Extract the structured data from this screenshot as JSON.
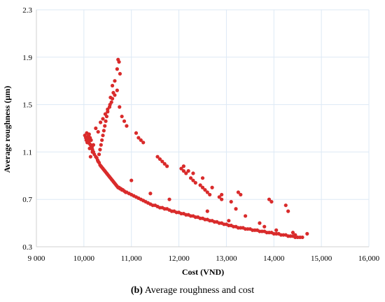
{
  "caption": {
    "label": "(b)",
    "text": " Average roughness and cost"
  },
  "chart_data": {
    "type": "scatter",
    "title": "",
    "xlabel": "Cost (VND)",
    "ylabel": "Average roughness (µm)",
    "xlim": [
      9000,
      16000
    ],
    "ylim": [
      0.3,
      2.3
    ],
    "x_ticks": [
      9000,
      10000,
      11000,
      12000,
      13000,
      14000,
      15000,
      16000
    ],
    "x_tick_labels": [
      "9 000",
      "10,000",
      "11,000",
      "12,000",
      "13,000",
      "14,000",
      "15,000",
      "16,000"
    ],
    "y_ticks": [
      0.3,
      0.7,
      1.1,
      1.5,
      1.9,
      2.3
    ],
    "y_tick_labels": [
      "0.3",
      "0.7",
      "1.1",
      "1.5",
      "1.9",
      "2.3"
    ],
    "grid": true,
    "marker_color": "#d92b2b",
    "series": [
      {
        "x": [
          10020,
          10040,
          10050,
          10060,
          10070,
          10080,
          10090,
          10100,
          10110,
          10120,
          10130,
          10140,
          10150,
          10160,
          10170,
          10180,
          10200,
          10220,
          10250,
          10270,
          10290,
          10300,
          10320,
          10340,
          10360,
          10380,
          10400,
          10420,
          10440,
          10460,
          10480,
          10500,
          10520,
          10540,
          10560,
          10580,
          10600,
          10620,
          10640,
          10660,
          10680,
          10700,
          10720,
          10740,
          10760,
          10780,
          10800,
          10820,
          10850,
          10880,
          10900,
          10950,
          11000,
          11050,
          11100,
          11150,
          11200,
          11250,
          11300,
          11350,
          11400,
          11450,
          11500,
          11550,
          11600,
          11650,
          11700,
          11750,
          11800,
          11850,
          11900,
          11950,
          12000,
          12050,
          12100,
          12150,
          12200,
          12250,
          12300,
          12350,
          12400,
          12450,
          12500,
          12550,
          12600,
          12650,
          12700,
          12750,
          12800,
          12850,
          12900,
          12950,
          13000,
          13050,
          13100,
          13150,
          13200,
          13250,
          13300,
          13350,
          13400,
          13450,
          13500,
          13550,
          13600,
          13650,
          13700,
          13750,
          13800,
          13850,
          13900,
          13950,
          14000,
          14050,
          14100,
          14150,
          14200,
          14250,
          14300,
          14350,
          14400,
          14450,
          14500,
          14550,
          14600,
          14700,
          10250,
          10300,
          10350,
          10400,
          10450,
          10500,
          10550,
          10600,
          10650,
          10700,
          10750,
          10800,
          10850,
          10900,
          11100,
          11150,
          11200,
          11250,
          11550,
          11600,
          11650,
          11700,
          11750,
          12050,
          12100,
          12150,
          12250,
          12300,
          12350,
          12450,
          12500,
          12550,
          12600,
          12650,
          12850,
          12900,
          13250,
          13300,
          13900,
          13950,
          14250,
          14300,
          10650,
          10700,
          10720,
          10740,
          10760,
          10600,
          10620,
          10560,
          10580,
          10540,
          10500,
          10480,
          10460,
          10440,
          10420,
          10400,
          10380,
          10360,
          10340,
          10320,
          10100,
          10150,
          10200,
          10120,
          10180,
          10140,
          12100,
          12200,
          12300,
          12500,
          12700,
          12900,
          13100,
          13200,
          13400,
          13700,
          13800,
          14050,
          14400,
          14450,
          11000,
          11400,
          11800,
          12600,
          13050
        ],
        "y": [
          1.24,
          1.22,
          1.2,
          1.26,
          1.18,
          1.21,
          1.23,
          1.19,
          1.25,
          1.17,
          1.22,
          1.16,
          1.2,
          1.15,
          1.14,
          1.12,
          1.1,
          1.08,
          1.06,
          1.05,
          1.03,
          1.02,
          1.01,
          0.99,
          0.98,
          0.97,
          0.96,
          0.95,
          0.94,
          0.93,
          0.92,
          0.91,
          0.9,
          0.89,
          0.88,
          0.87,
          0.86,
          0.85,
          0.84,
          0.83,
          0.82,
          0.81,
          0.8,
          0.8,
          0.79,
          0.79,
          0.78,
          0.78,
          0.77,
          0.76,
          0.76,
          0.75,
          0.74,
          0.73,
          0.72,
          0.71,
          0.7,
          0.69,
          0.68,
          0.67,
          0.66,
          0.65,
          0.65,
          0.64,
          0.63,
          0.63,
          0.62,
          0.62,
          0.61,
          0.6,
          0.6,
          0.59,
          0.59,
          0.58,
          0.58,
          0.57,
          0.57,
          0.56,
          0.56,
          0.55,
          0.55,
          0.54,
          0.54,
          0.53,
          0.53,
          0.52,
          0.52,
          0.51,
          0.51,
          0.5,
          0.5,
          0.49,
          0.49,
          0.48,
          0.48,
          0.47,
          0.47,
          0.46,
          0.46,
          0.46,
          0.45,
          0.45,
          0.45,
          0.44,
          0.44,
          0.44,
          0.43,
          0.43,
          0.43,
          0.42,
          0.42,
          0.42,
          0.41,
          0.41,
          0.41,
          0.4,
          0.4,
          0.4,
          0.39,
          0.39,
          0.39,
          0.38,
          0.38,
          0.38,
          0.38,
          0.41,
          1.3,
          1.27,
          1.35,
          1.38,
          1.42,
          1.46,
          1.5,
          1.55,
          1.58,
          1.62,
          1.48,
          1.4,
          1.36,
          1.32,
          1.26,
          1.22,
          1.2,
          1.18,
          1.06,
          1.04,
          1.02,
          1.0,
          0.98,
          0.96,
          0.94,
          0.92,
          0.88,
          0.86,
          0.84,
          0.82,
          0.8,
          0.78,
          0.76,
          0.74,
          0.72,
          0.7,
          0.76,
          0.74,
          0.7,
          0.68,
          0.65,
          0.6,
          1.7,
          1.8,
          1.88,
          1.86,
          1.76,
          1.66,
          1.6,
          1.56,
          1.52,
          1.48,
          1.44,
          1.4,
          1.36,
          1.32,
          1.28,
          1.24,
          1.2,
          1.16,
          1.12,
          1.08,
          1.24,
          1.2,
          1.16,
          1.13,
          1.1,
          1.06,
          0.98,
          0.94,
          0.92,
          0.88,
          0.8,
          0.74,
          0.68,
          0.62,
          0.56,
          0.5,
          0.47,
          0.44,
          0.42,
          0.4,
          0.86,
          0.75,
          0.7,
          0.6,
          0.52
        ]
      }
    ]
  }
}
